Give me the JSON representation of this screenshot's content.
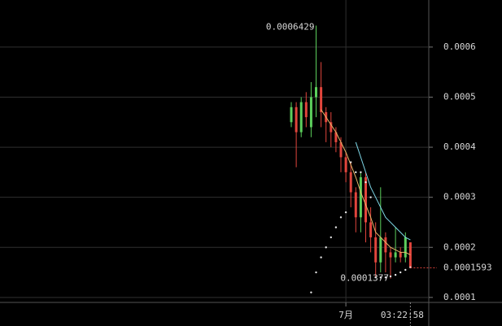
{
  "chart_data": {
    "type": "candlestick",
    "categories": [
      null,
      null,
      null,
      null,
      null,
      null,
      null,
      null,
      null,
      null,
      null,
      "7月",
      null,
      null,
      null,
      null,
      null,
      null,
      null,
      null,
      null,
      null,
      null,
      null,
      null
    ],
    "open": [
      0.00045,
      0.00048,
      0.00043,
      0.00049,
      0.00044,
      0.0005,
      0.00052,
      0.00047,
      0.00045,
      0.00043,
      0.00041,
      0.00038,
      0.00035,
      0.00031,
      0.00026,
      0.00034,
      0.00025,
      0.00022,
      0.00017,
      0.00022,
      0.00019,
      0.00018,
      0.00019,
      0.00018,
      0.00021
    ],
    "high": [
      0.00049,
      0.00049,
      0.0005,
      0.00051,
      0.00053,
      0.0006429,
      0.00057,
      0.00048,
      0.00047,
      0.00044,
      0.00042,
      0.00039,
      0.00037,
      0.00032,
      0.00035,
      0.00035,
      0.00028,
      0.00025,
      0.00032,
      0.00023,
      0.0002,
      0.00024,
      0.0002,
      0.00023,
      0.00021
    ],
    "low": [
      0.00044,
      0.00036,
      0.00042,
      0.00044,
      0.00042,
      0.00046,
      0.00044,
      0.00041,
      0.0004,
      0.00039,
      0.00035,
      0.00033,
      0.00028,
      0.00023,
      0.00023,
      0.00021,
      0.00019,
      0.00014,
      0.00015,
      0.00015,
      0.0001377,
      0.00017,
      0.00017,
      0.00017,
      0.00016
    ],
    "close": [
      0.00048,
      0.00043,
      0.00049,
      0.00046,
      0.0005,
      0.00052,
      0.00047,
      0.00045,
      0.00043,
      0.00041,
      0.00038,
      0.00035,
      0.00031,
      0.00026,
      0.00034,
      0.00025,
      0.00022,
      0.00017,
      0.00022,
      0.00019,
      0.00018,
      0.00019,
      0.00018,
      0.00022,
      0.0001593
    ],
    "up_color": "#5ccf5c",
    "down_color": "#e2453c",
    "overlays": [
      {
        "color": "#e8b86a",
        "values": [
          null,
          null,
          null,
          null,
          null,
          null,
          0.000475,
          0.00046,
          0.000445,
          0.00043,
          0.00041,
          0.00039,
          0.000365,
          0.00034,
          0.00031,
          0.000285,
          0.00026,
          0.00023,
          0.00022,
          0.00021,
          0.0002,
          0.000195,
          0.00019,
          0.00019,
          0.000185
        ]
      },
      {
        "color": "#7fd8e8",
        "values": [
          null,
          null,
          null,
          null,
          null,
          null,
          null,
          null,
          null,
          null,
          null,
          null,
          null,
          0.00041,
          0.00038,
          0.00035,
          0.00032,
          0.0003,
          0.00028,
          0.00026,
          0.00025,
          0.00024,
          0.00023,
          0.00022,
          0.000215
        ]
      }
    ],
    "sar": {
      "color": "#e6e6e6",
      "values": [
        null,
        null,
        null,
        null,
        0.00011,
        0.00015,
        0.00018,
        0.0002,
        0.00022,
        0.00024,
        0.00026,
        0.00027,
        0.00037,
        0.00035,
        0.00035,
        0.00033,
        0.0003,
        0.00014,
        0.00014,
        0.00014,
        0.000142,
        0.000145,
        0.00015,
        0.000155,
        0.00016
      ]
    },
    "ylim": [
      9e-05,
      0.000694
    ],
    "yticks": [
      0.0001,
      0.0002,
      0.0003,
      0.0004,
      0.0005,
      0.0006
    ],
    "grid": true,
    "crosshair_label": "03:22:58"
  }
}
